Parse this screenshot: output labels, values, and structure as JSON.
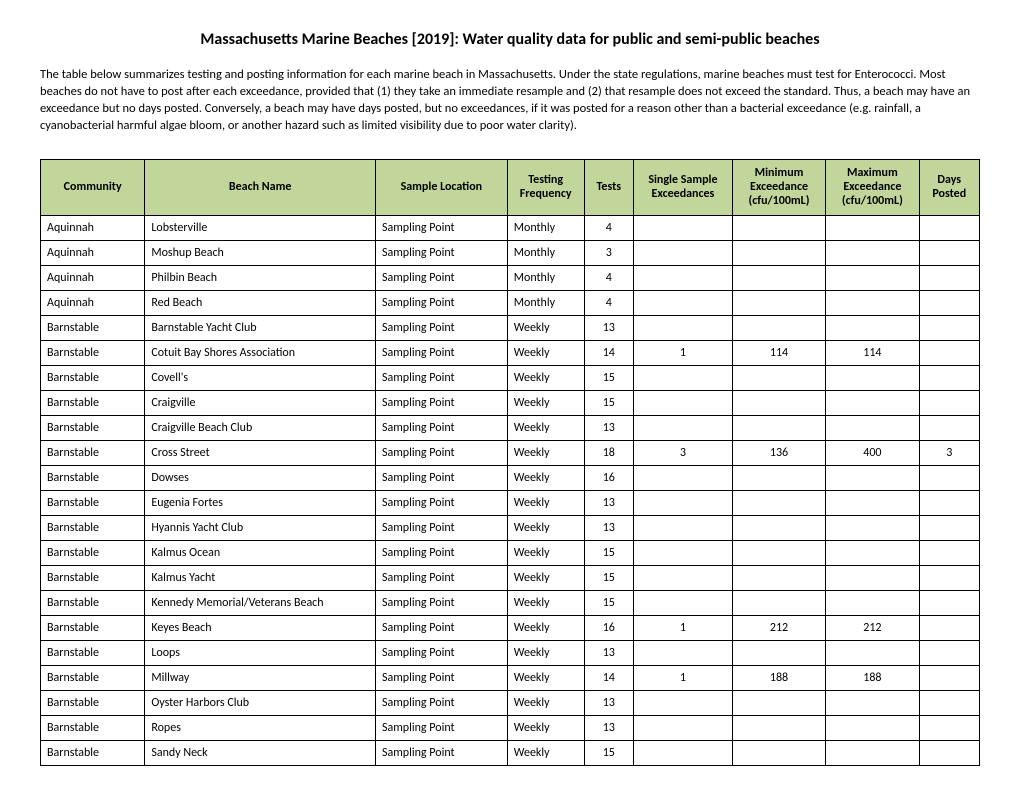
{
  "title": "Massachusetts Marine Beaches [2019]: Water quality data for public and semi-public beaches",
  "intro": "The table below summarizes testing and posting information for each marine beach in Massachusetts. Under the state regulations, marine beaches must test for Enterococci. Most beaches do not have to post after each exceedance, provided that (1) they take an immediate resample and (2) that resample does not exceed the standard. Thus, a beach may have an exceedance but no days posted. Conversely, a beach may have days posted, but no exceedances, if it was posted for a reason other than a bacterial exceedance (e.g. rainfall, a cyanobacterial harmful algae bloom, or another hazard such as limited visibility due to poor water clarity).",
  "columns": [
    "Community",
    "Beach Name",
    "Sample Location",
    "Testing Frequency",
    "Tests",
    "Single Sample Exceedances",
    "Minimum Exceedance (cfu/100mL)",
    "Maximum Exceedance (cfu/100mL)",
    "Days Posted"
  ],
  "rows": [
    [
      "Aquinnah",
      "Lobsterville",
      "Sampling Point",
      "Monthly",
      "4",
      "",
      "",
      "",
      ""
    ],
    [
      "Aquinnah",
      "Moshup Beach",
      "Sampling Point",
      "Monthly",
      "3",
      "",
      "",
      "",
      ""
    ],
    [
      "Aquinnah",
      "Philbin Beach",
      "Sampling Point",
      "Monthly",
      "4",
      "",
      "",
      "",
      ""
    ],
    [
      "Aquinnah",
      "Red Beach",
      "Sampling Point",
      "Monthly",
      "4",
      "",
      "",
      "",
      ""
    ],
    [
      "Barnstable",
      "Barnstable Yacht Club",
      "Sampling Point",
      "Weekly",
      "13",
      "",
      "",
      "",
      ""
    ],
    [
      "Barnstable",
      "Cotuit Bay Shores Association",
      "Sampling Point",
      "Weekly",
      "14",
      "1",
      "114",
      "114",
      ""
    ],
    [
      "Barnstable",
      "Covell's",
      "Sampling Point",
      "Weekly",
      "15",
      "",
      "",
      "",
      ""
    ],
    [
      "Barnstable",
      "Craigville",
      "Sampling Point",
      "Weekly",
      "15",
      "",
      "",
      "",
      ""
    ],
    [
      "Barnstable",
      "Craigville Beach Club",
      "Sampling Point",
      "Weekly",
      "13",
      "",
      "",
      "",
      ""
    ],
    [
      "Barnstable",
      "Cross Street",
      "Sampling Point",
      "Weekly",
      "18",
      "3",
      "136",
      "400",
      "3"
    ],
    [
      "Barnstable",
      "Dowses",
      "Sampling Point",
      "Weekly",
      "16",
      "",
      "",
      "",
      ""
    ],
    [
      "Barnstable",
      "Eugenia Fortes",
      "Sampling Point",
      "Weekly",
      "13",
      "",
      "",
      "",
      ""
    ],
    [
      "Barnstable",
      "Hyannis Yacht Club",
      "Sampling Point",
      "Weekly",
      "13",
      "",
      "",
      "",
      ""
    ],
    [
      "Barnstable",
      "Kalmus Ocean",
      "Sampling Point",
      "Weekly",
      "15",
      "",
      "",
      "",
      ""
    ],
    [
      "Barnstable",
      "Kalmus Yacht",
      "Sampling Point",
      "Weekly",
      "15",
      "",
      "",
      "",
      ""
    ],
    [
      "Barnstable",
      "Kennedy Memorial/Veterans Beach",
      "Sampling Point",
      "Weekly",
      "15",
      "",
      "",
      "",
      ""
    ],
    [
      "Barnstable",
      "Keyes Beach",
      "Sampling Point",
      "Weekly",
      "16",
      "1",
      "212",
      "212",
      ""
    ],
    [
      "Barnstable",
      "Loops",
      "Sampling Point",
      "Weekly",
      "13",
      "",
      "",
      "",
      ""
    ],
    [
      "Barnstable",
      "Millway",
      "Sampling Point",
      "Weekly",
      "14",
      "1",
      "188",
      "188",
      ""
    ],
    [
      "Barnstable",
      "Oyster Harbors Club",
      "Sampling Point",
      "Weekly",
      "13",
      "",
      "",
      "",
      ""
    ],
    [
      "Barnstable",
      "Ropes",
      "Sampling Point",
      "Weekly",
      "13",
      "",
      "",
      "",
      ""
    ],
    [
      "Barnstable",
      "Sandy Neck",
      "Sampling Point",
      "Weekly",
      "15",
      "",
      "",
      "",
      ""
    ]
  ],
  "style": {
    "header_bg": "#c2d69b",
    "border_color": "#000000",
    "font_family": "Calibri, Arial, sans-serif",
    "title_fontsize": 16,
    "body_fontsize": 12.5,
    "cell_fontsize": 12,
    "centered_columns": [
      4,
      5,
      6,
      7,
      8
    ]
  }
}
